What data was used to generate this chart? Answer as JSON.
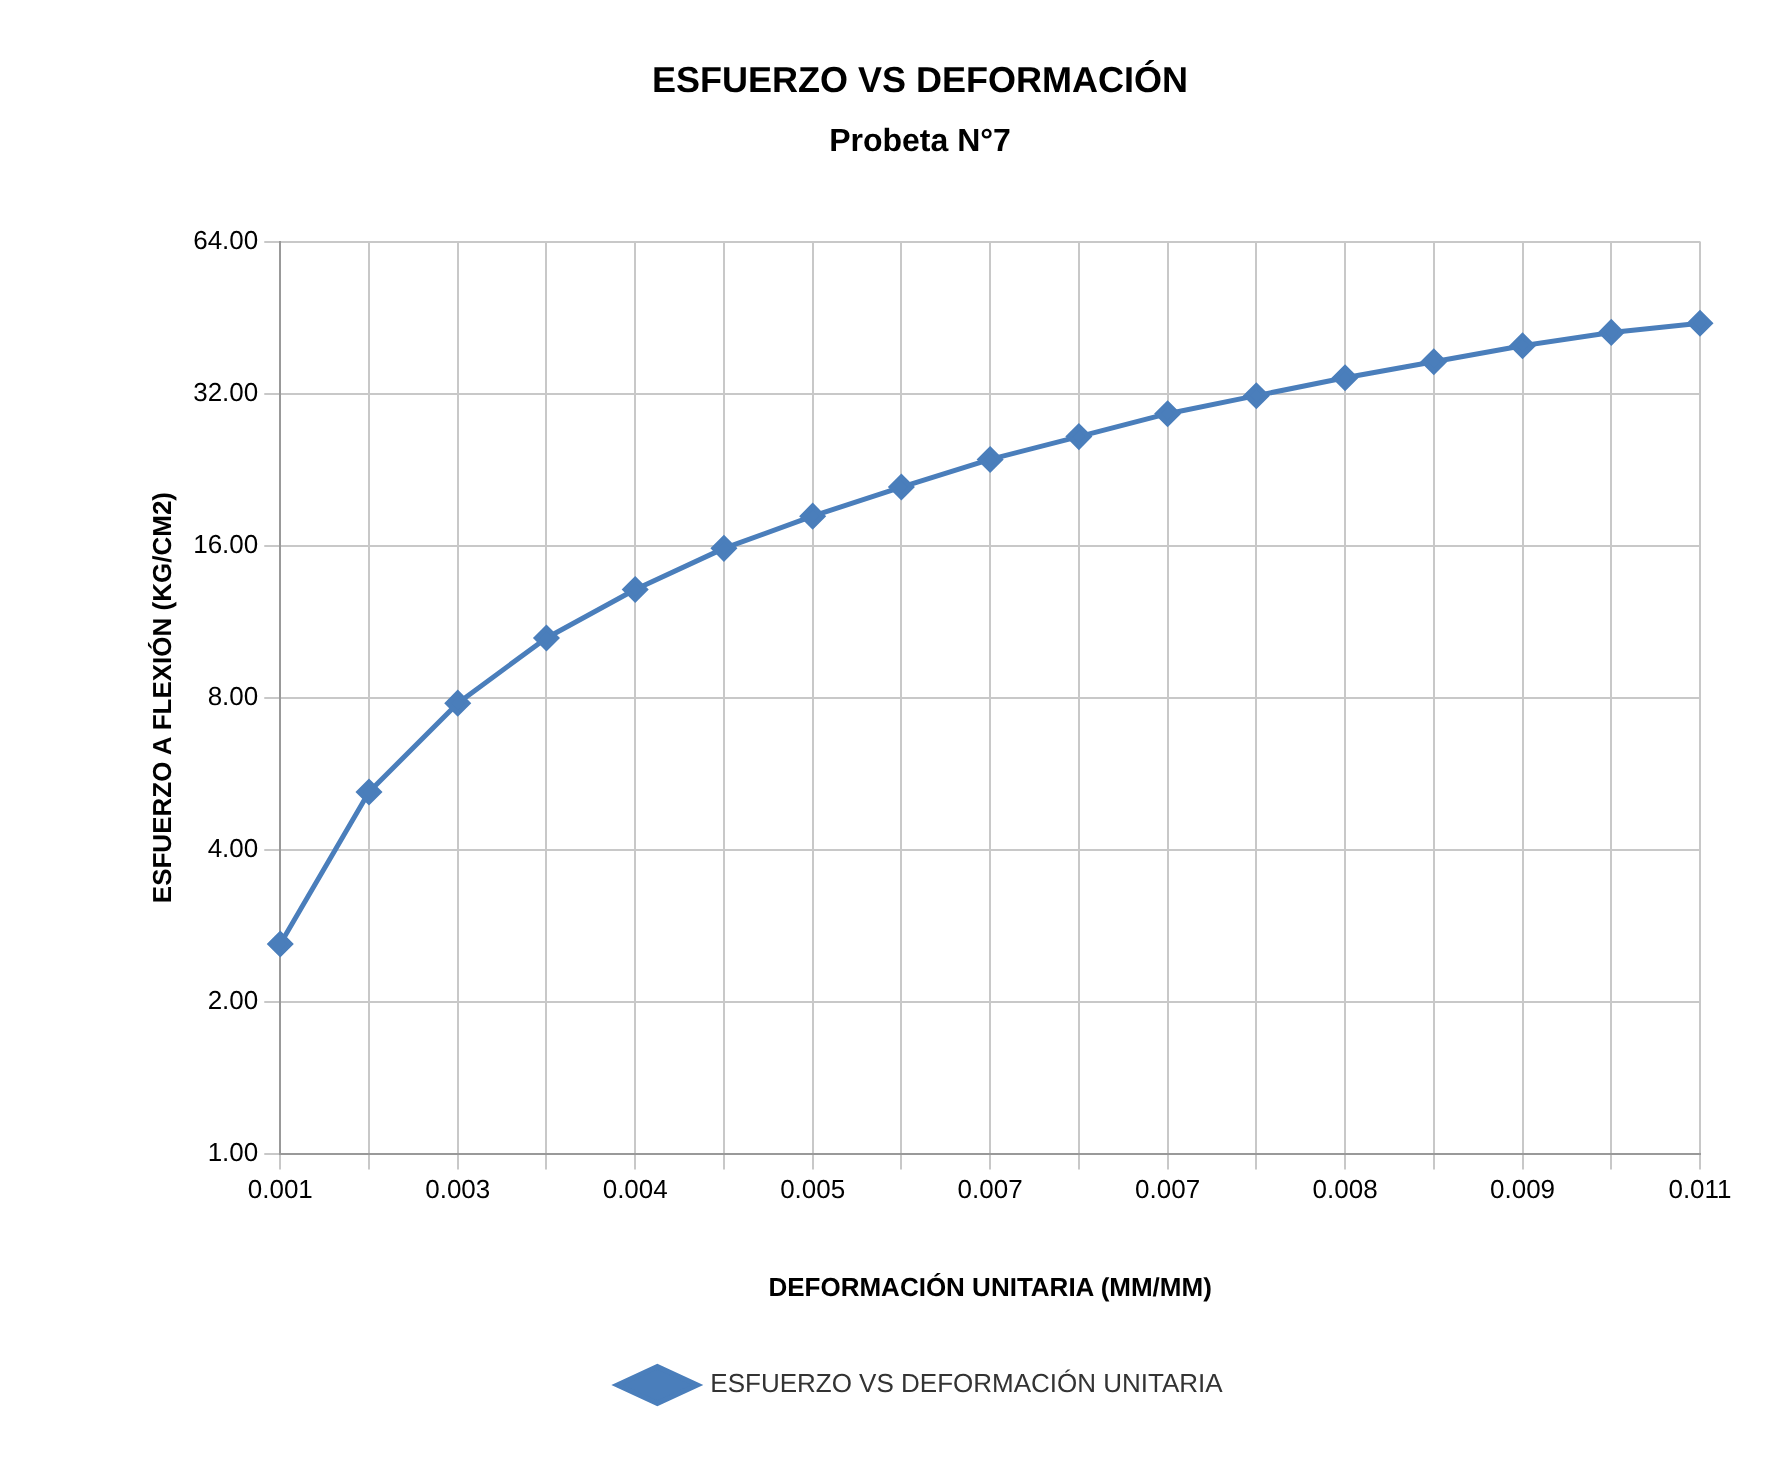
{
  "chart_data": {
    "type": "line",
    "title": "ESFUERZO VS DEFORMACIÓN",
    "subtitle": "Probeta N°7",
    "xlabel": "DEFORMACIÓN UNITARIA (MM/MM)",
    "ylabel": "ESFUERZO A FLEXIÓN (KG/CM2)",
    "categories": [
      "0.001",
      null,
      "0.003",
      null,
      "0.004",
      null,
      "0.005",
      null,
      "0.007",
      null,
      "0.007",
      null,
      "0.008",
      null,
      "0.009",
      null,
      "0.011"
    ],
    "series": [
      {
        "name": "ESFUERZO VS DEFORMACIÓN UNITARIA",
        "color": "#4a7ebb",
        "values": [
          2.6,
          5.2,
          7.8,
          10.5,
          13.1,
          15.8,
          18.3,
          20.9,
          23.7,
          26.3,
          29.2,
          31.7,
          34.4,
          37.0,
          39.8,
          42.3,
          44.1
        ]
      }
    ],
    "log": "y",
    "ylim": [
      1,
      64
    ],
    "yticks": [
      {
        "value": 1,
        "label": "1.00"
      },
      {
        "value": 2,
        "label": "2.00"
      },
      {
        "value": 4,
        "label": "4.00"
      },
      {
        "value": 8,
        "label": "8.00"
      },
      {
        "value": 16,
        "label": "16.00"
      },
      {
        "value": 32,
        "label": "32.00"
      },
      {
        "value": 64,
        "label": "64.00"
      }
    ],
    "grid": true,
    "legend": "bottom",
    "marker": "diamond",
    "line_style": "solid"
  }
}
